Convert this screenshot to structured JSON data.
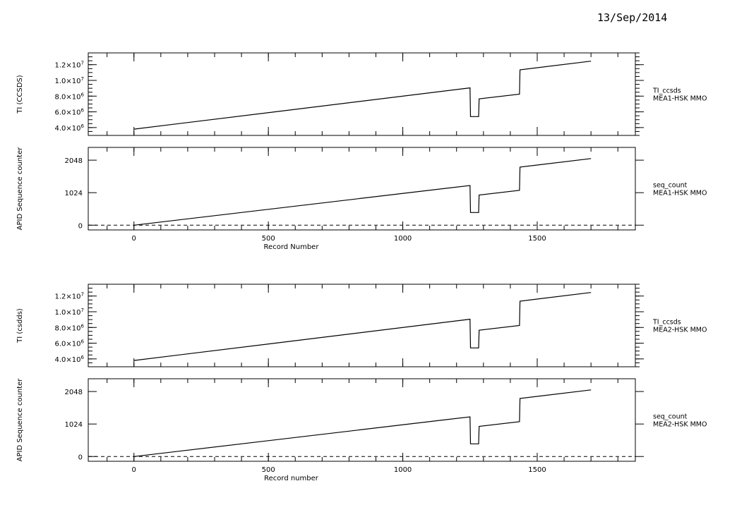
{
  "date": "13/Sep/2014",
  "chart_data": [
    {
      "type": "line",
      "ylabel": "TI (CCSDS)",
      "ylim": [
        3000000,
        13500000
      ],
      "xlim": [
        -170,
        1865
      ],
      "yticks": [
        {
          "value": 4000000,
          "mant": "4.0",
          "exp": "6"
        },
        {
          "value": 6000000,
          "mant": "6.0",
          "exp": "6"
        },
        {
          "value": 8000000,
          "mant": "8.0",
          "exp": "6"
        },
        {
          "value": 10000000,
          "mant": "1.0",
          "exp": "7"
        },
        {
          "value": 12000000,
          "mant": "1.2",
          "exp": "7"
        }
      ],
      "right_labels": [
        "TI_ccsds",
        "MEA1-HSK MMO"
      ],
      "series": [
        {
          "x": [
            0,
            1250,
            1252,
            1282,
            1284,
            1434,
            1436,
            1700
          ],
          "y": [
            3800000,
            9050000,
            5400000,
            5400000,
            7650000,
            8250000,
            11350000,
            12450000
          ]
        }
      ]
    },
    {
      "type": "line",
      "ylabel": "APID Sequence counter",
      "ylim": [
        -150,
        2450
      ],
      "xlim": [
        -170,
        1865
      ],
      "yticks": [
        {
          "value": 0,
          "label": "0"
        },
        {
          "value": 1024,
          "label": "1024"
        },
        {
          "value": 2048,
          "label": "2048"
        }
      ],
      "xticks": [
        0,
        500,
        1000,
        1500
      ],
      "xlabel": "Record Number",
      "right_labels": [
        "seq_count",
        "MEA1-HSK MMO"
      ],
      "series": [
        {
          "x": [
            0,
            1250,
            1252,
            1282,
            1284,
            1434,
            1436,
            1700
          ],
          "y": [
            0,
            1250,
            400,
            400,
            950,
            1100,
            1830,
            2100
          ]
        }
      ],
      "zero_line": 0
    },
    {
      "type": "line",
      "ylabel": "TI (csdds)",
      "ylim": [
        3000000,
        13500000
      ],
      "xlim": [
        -170,
        1865
      ],
      "yticks": [
        {
          "value": 4000000,
          "mant": "4.0",
          "exp": "6"
        },
        {
          "value": 6000000,
          "mant": "6.0",
          "exp": "6"
        },
        {
          "value": 8000000,
          "mant": "8.0",
          "exp": "6"
        },
        {
          "value": 10000000,
          "mant": "1.0",
          "exp": "7"
        },
        {
          "value": 12000000,
          "mant": "1.2",
          "exp": "7"
        }
      ],
      "right_labels": [
        "TI_ccsds",
        "MEA2-HSK MMO"
      ],
      "series": [
        {
          "x": [
            0,
            1250,
            1252,
            1282,
            1284,
            1434,
            1436,
            1700
          ],
          "y": [
            3800000,
            9050000,
            5400000,
            5400000,
            7650000,
            8250000,
            11350000,
            12450000
          ]
        }
      ]
    },
    {
      "type": "line",
      "ylabel": "APID Sequence counter",
      "ylim": [
        -150,
        2450
      ],
      "xlim": [
        -170,
        1865
      ],
      "yticks": [
        {
          "value": 0,
          "label": "0"
        },
        {
          "value": 1024,
          "label": "1024"
        },
        {
          "value": 2048,
          "label": "2048"
        }
      ],
      "xticks": [
        0,
        500,
        1000,
        1500
      ],
      "xlabel": "Record number",
      "right_labels": [
        "seq_count",
        "MEA2-HSK MMO"
      ],
      "series": [
        {
          "x": [
            0,
            1250,
            1252,
            1282,
            1284,
            1434,
            1436,
            1700
          ],
          "y": [
            0,
            1250,
            400,
            400,
            950,
            1100,
            1830,
            2100
          ]
        }
      ],
      "zero_line": 0
    }
  ]
}
